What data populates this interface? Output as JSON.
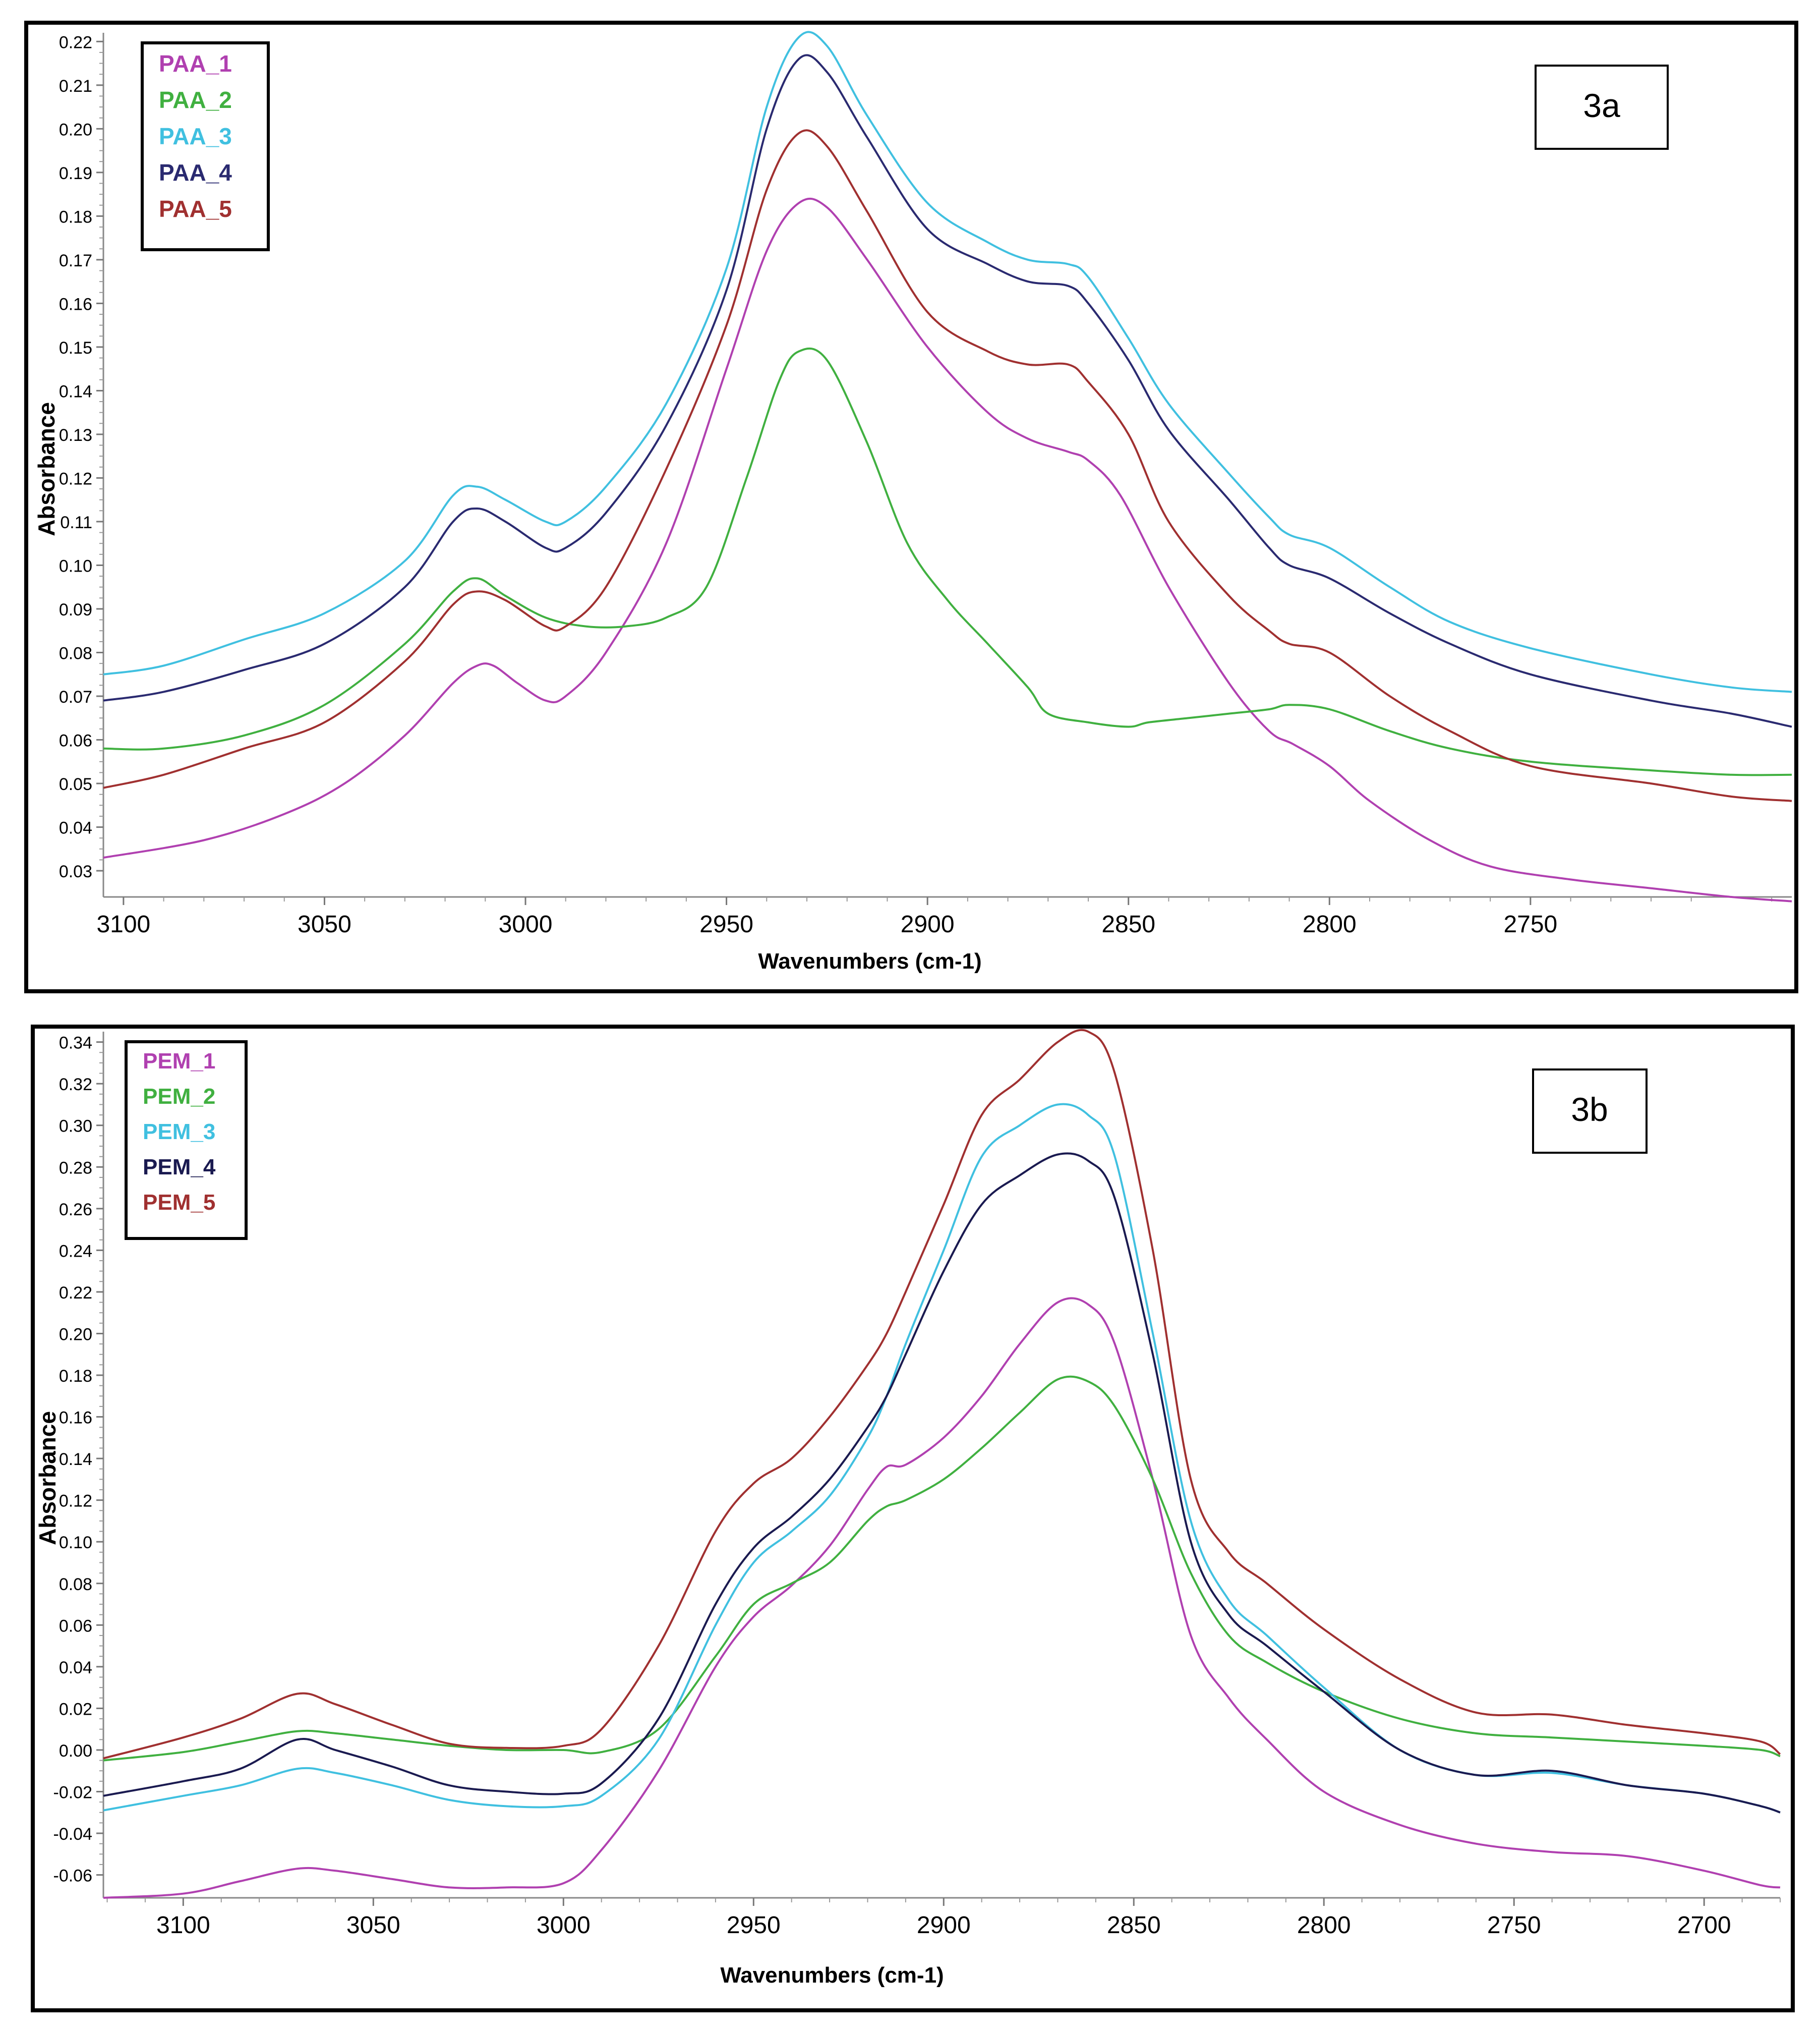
{
  "chart_data": [
    {
      "type": "line",
      "panel_label": "3a",
      "xlabel": "Wavenumbers (cm-1)",
      "ylabel": "Absorbance",
      "xlim": [
        3105,
        2685
      ],
      "ylim": [
        0.024,
        0.222
      ],
      "x_ticks": [
        3100,
        3050,
        3000,
        2950,
        2900,
        2850,
        2800,
        2750
      ],
      "x_tick_labels": [
        "3100",
        "3050",
        "3000",
        "2950",
        "2900",
        "2850",
        "2800",
        "2750"
      ],
      "y_ticks": [
        0.03,
        0.04,
        0.05,
        0.06,
        0.07,
        0.08,
        0.09,
        0.1,
        0.11,
        0.12,
        0.13,
        0.14,
        0.15,
        0.16,
        0.17,
        0.18,
        0.19,
        0.2,
        0.21,
        0.22
      ],
      "y_tick_labels": [
        "0.03",
        "0.04",
        "0.05",
        "0.06",
        "0.07",
        "0.08",
        "0.09",
        "0.10",
        "0.11",
        "0.12",
        "0.13",
        "0.14",
        "0.15",
        "0.16",
        "0.17",
        "0.18",
        "0.19",
        "0.20",
        "0.21",
        "0.22"
      ],
      "legend_position": "top-left",
      "series": [
        {
          "name": "PAA_1",
          "color": "#b040b0",
          "x": [
            3105,
            3080,
            3060,
            3045,
            3030,
            3018,
            3012,
            3008,
            3002,
            2995,
            2990,
            2980,
            2965,
            2950,
            2940,
            2932,
            2925,
            2915,
            2900,
            2885,
            2875,
            2865,
            2860,
            2852,
            2840,
            2825,
            2815,
            2809,
            2800,
            2790,
            2775,
            2760,
            2740,
            2720,
            2700,
            2685
          ],
          "y": [
            0.033,
            0.037,
            0.043,
            0.05,
            0.061,
            0.073,
            0.077,
            0.077,
            0.073,
            0.069,
            0.07,
            0.08,
            0.105,
            0.145,
            0.172,
            0.183,
            0.182,
            0.17,
            0.15,
            0.135,
            0.129,
            0.126,
            0.124,
            0.116,
            0.095,
            0.073,
            0.062,
            0.059,
            0.054,
            0.046,
            0.037,
            0.031,
            0.028,
            0.026,
            0.024,
            0.023
          ]
        },
        {
          "name": "PAA_2",
          "color": "#40b040",
          "x": [
            3105,
            3090,
            3070,
            3050,
            3030,
            3018,
            3012,
            3005,
            2995,
            2985,
            2975,
            2965,
            2955,
            2945,
            2937,
            2932,
            2925,
            2915,
            2905,
            2895,
            2885,
            2875,
            2870,
            2860,
            2850,
            2845,
            2835,
            2825,
            2815,
            2810,
            2800,
            2785,
            2770,
            2750,
            2720,
            2700,
            2685
          ],
          "y": [
            0.058,
            0.058,
            0.061,
            0.068,
            0.082,
            0.094,
            0.097,
            0.093,
            0.088,
            0.086,
            0.086,
            0.088,
            0.095,
            0.12,
            0.142,
            0.149,
            0.147,
            0.128,
            0.105,
            0.092,
            0.082,
            0.072,
            0.066,
            0.064,
            0.063,
            0.064,
            0.065,
            0.066,
            0.067,
            0.068,
            0.067,
            0.062,
            0.058,
            0.055,
            0.053,
            0.052,
            0.052
          ]
        },
        {
          "name": "PAA_3",
          "color": "#40c0e0",
          "x": [
            3105,
            3090,
            3070,
            3050,
            3030,
            3018,
            3012,
            3005,
            2995,
            2990,
            2980,
            2965,
            2950,
            2940,
            2932,
            2925,
            2915,
            2900,
            2885,
            2875,
            2865,
            2860,
            2850,
            2840,
            2825,
            2815,
            2810,
            2800,
            2785,
            2770,
            2750,
            2720,
            2700,
            2685
          ],
          "y": [
            0.075,
            0.077,
            0.083,
            0.089,
            0.101,
            0.116,
            0.118,
            0.115,
            0.11,
            0.11,
            0.118,
            0.137,
            0.168,
            0.205,
            0.221,
            0.219,
            0.203,
            0.183,
            0.174,
            0.17,
            0.169,
            0.166,
            0.152,
            0.137,
            0.121,
            0.111,
            0.107,
            0.104,
            0.095,
            0.087,
            0.081,
            0.075,
            0.072,
            0.071
          ]
        },
        {
          "name": "PAA_4",
          "color": "#2a2a70",
          "x": [
            3105,
            3090,
            3070,
            3050,
            3030,
            3018,
            3012,
            3005,
            2995,
            2990,
            2980,
            2965,
            2950,
            2940,
            2932,
            2925,
            2915,
            2900,
            2885,
            2875,
            2865,
            2860,
            2850,
            2840,
            2825,
            2815,
            2810,
            2800,
            2785,
            2770,
            2750,
            2720,
            2700,
            2685
          ],
          "y": [
            0.069,
            0.071,
            0.076,
            0.082,
            0.095,
            0.11,
            0.113,
            0.11,
            0.104,
            0.104,
            0.112,
            0.132,
            0.163,
            0.2,
            0.216,
            0.213,
            0.198,
            0.177,
            0.169,
            0.165,
            0.164,
            0.16,
            0.147,
            0.131,
            0.115,
            0.104,
            0.1,
            0.097,
            0.089,
            0.082,
            0.075,
            0.069,
            0.066,
            0.063
          ]
        },
        {
          "name": "PAA_5",
          "color": "#a03030",
          "x": [
            3105,
            3090,
            3070,
            3050,
            3030,
            3018,
            3012,
            3005,
            2995,
            2990,
            2980,
            2965,
            2950,
            2940,
            2932,
            2925,
            2915,
            2900,
            2885,
            2875,
            2865,
            2860,
            2850,
            2840,
            2825,
            2815,
            2810,
            2800,
            2785,
            2770,
            2750,
            2720,
            2700,
            2685
          ],
          "y": [
            0.049,
            0.052,
            0.058,
            0.064,
            0.078,
            0.091,
            0.094,
            0.092,
            0.086,
            0.086,
            0.095,
            0.122,
            0.155,
            0.186,
            0.199,
            0.196,
            0.181,
            0.158,
            0.149,
            0.146,
            0.146,
            0.142,
            0.13,
            0.11,
            0.093,
            0.085,
            0.082,
            0.08,
            0.07,
            0.062,
            0.054,
            0.05,
            0.047,
            0.046
          ]
        }
      ]
    },
    {
      "type": "line",
      "panel_label": "3b",
      "xlabel": "Wavenumbers (cm-1)",
      "ylabel": "Absorbance",
      "xlim": [
        3121,
        2680
      ],
      "ylim": [
        -0.071,
        0.345
      ],
      "x_ticks": [
        3100,
        3050,
        3000,
        2950,
        2900,
        2850,
        2800,
        2750,
        2700
      ],
      "x_tick_labels": [
        "3100",
        "3050",
        "3000",
        "2950",
        "2900",
        "2850",
        "2800",
        "2750",
        "2700"
      ],
      "y_ticks": [
        -0.06,
        -0.04,
        -0.02,
        0.0,
        0.02,
        0.04,
        0.06,
        0.08,
        0.1,
        0.12,
        0.14,
        0.16,
        0.18,
        0.2,
        0.22,
        0.24,
        0.26,
        0.28,
        0.3,
        0.32,
        0.34
      ],
      "y_tick_labels": [
        "-0.06",
        "-0.04",
        "-0.02",
        "0.00",
        "0.02",
        "0.04",
        "0.06",
        "0.08",
        "0.10",
        "0.12",
        "0.14",
        "0.16",
        "0.18",
        "0.20",
        "0.22",
        "0.24",
        "0.26",
        "0.28",
        "0.30",
        "0.32",
        "0.34"
      ],
      "legend_position": "top-left",
      "series": [
        {
          "name": "PEM_1",
          "color": "#b040b0",
          "x": [
            3121,
            3100,
            3085,
            3070,
            3060,
            3045,
            3030,
            3015,
            3000,
            2990,
            2975,
            2960,
            2950,
            2940,
            2930,
            2920,
            2915,
            2910,
            2900,
            2890,
            2880,
            2870,
            2862,
            2855,
            2845,
            2835,
            2825,
            2815,
            2800,
            2780,
            2760,
            2740,
            2720,
            2700,
            2685,
            2680
          ],
          "y": [
            -0.071,
            -0.069,
            -0.063,
            -0.057,
            -0.058,
            -0.062,
            -0.066,
            -0.066,
            -0.064,
            -0.048,
            -0.01,
            0.04,
            0.064,
            0.079,
            0.098,
            0.125,
            0.136,
            0.137,
            0.15,
            0.17,
            0.195,
            0.215,
            0.214,
            0.195,
            0.13,
            0.055,
            0.025,
            0.005,
            -0.02,
            -0.036,
            -0.045,
            -0.049,
            -0.051,
            -0.058,
            -0.065,
            -0.066
          ]
        },
        {
          "name": "PEM_2",
          "color": "#40b040",
          "x": [
            3121,
            3100,
            3085,
            3070,
            3060,
            3045,
            3030,
            3015,
            3000,
            2990,
            2975,
            2960,
            2950,
            2940,
            2930,
            2920,
            2915,
            2910,
            2900,
            2890,
            2880,
            2870,
            2862,
            2855,
            2845,
            2835,
            2825,
            2815,
            2800,
            2780,
            2760,
            2740,
            2720,
            2700,
            2685,
            2680
          ],
          "y": [
            -0.005,
            -0.001,
            0.004,
            0.009,
            0.008,
            0.005,
            0.002,
            0.0,
            0.0,
            -0.001,
            0.01,
            0.045,
            0.07,
            0.08,
            0.09,
            0.11,
            0.117,
            0.12,
            0.13,
            0.145,
            0.162,
            0.178,
            0.177,
            0.165,
            0.13,
            0.085,
            0.055,
            0.042,
            0.028,
            0.015,
            0.008,
            0.006,
            0.004,
            0.002,
            0.0,
            -0.003
          ]
        },
        {
          "name": "PEM_3",
          "color": "#40c0e0",
          "x": [
            3121,
            3100,
            3085,
            3070,
            3060,
            3045,
            3030,
            3015,
            3000,
            2990,
            2975,
            2960,
            2950,
            2940,
            2930,
            2920,
            2915,
            2910,
            2900,
            2890,
            2880,
            2870,
            2862,
            2855,
            2845,
            2835,
            2825,
            2815,
            2800,
            2780,
            2760,
            2740,
            2720,
            2700,
            2685,
            2680
          ],
          "y": [
            -0.029,
            -0.022,
            -0.017,
            -0.009,
            -0.011,
            -0.017,
            -0.024,
            -0.027,
            -0.027,
            -0.022,
            0.005,
            0.06,
            0.09,
            0.105,
            0.122,
            0.15,
            0.17,
            0.195,
            0.24,
            0.285,
            0.3,
            0.31,
            0.305,
            0.285,
            0.2,
            0.11,
            0.072,
            0.055,
            0.03,
            0.0,
            -0.012,
            -0.011,
            -0.017,
            -0.021,
            -0.027,
            -0.03
          ]
        },
        {
          "name": "PEM_4",
          "color": "#1a1a50",
          "x": [
            3121,
            3100,
            3085,
            3070,
            3060,
            3045,
            3030,
            3015,
            3000,
            2990,
            2975,
            2960,
            2950,
            2940,
            2930,
            2920,
            2915,
            2910,
            2900,
            2890,
            2880,
            2870,
            2862,
            2855,
            2845,
            2835,
            2825,
            2815,
            2800,
            2780,
            2760,
            2740,
            2720,
            2700,
            2685,
            2680
          ],
          "y": [
            -0.022,
            -0.015,
            -0.009,
            0.005,
            0.0,
            -0.008,
            -0.017,
            -0.02,
            -0.021,
            -0.016,
            0.015,
            0.07,
            0.097,
            0.112,
            0.13,
            0.155,
            0.17,
            0.19,
            0.23,
            0.262,
            0.276,
            0.286,
            0.283,
            0.265,
            0.19,
            0.1,
            0.065,
            0.05,
            0.028,
            0.0,
            -0.012,
            -0.01,
            -0.017,
            -0.021,
            -0.027,
            -0.03
          ]
        },
        {
          "name": "PEM_5",
          "color": "#a03030",
          "x": [
            3121,
            3100,
            3085,
            3070,
            3060,
            3045,
            3030,
            3015,
            3000,
            2990,
            2975,
            2960,
            2950,
            2940,
            2930,
            2920,
            2915,
            2910,
            2900,
            2890,
            2880,
            2870,
            2862,
            2855,
            2845,
            2835,
            2825,
            2815,
            2800,
            2780,
            2760,
            2740,
            2720,
            2700,
            2685,
            2680
          ],
          "y": [
            -0.004,
            0.006,
            0.015,
            0.027,
            0.022,
            0.012,
            0.003,
            0.001,
            0.002,
            0.01,
            0.05,
            0.105,
            0.128,
            0.14,
            0.16,
            0.185,
            0.2,
            0.22,
            0.262,
            0.305,
            0.322,
            0.34,
            0.345,
            0.325,
            0.24,
            0.13,
            0.095,
            0.08,
            0.058,
            0.034,
            0.018,
            0.017,
            0.012,
            0.008,
            0.004,
            -0.002
          ]
        }
      ]
    }
  ]
}
